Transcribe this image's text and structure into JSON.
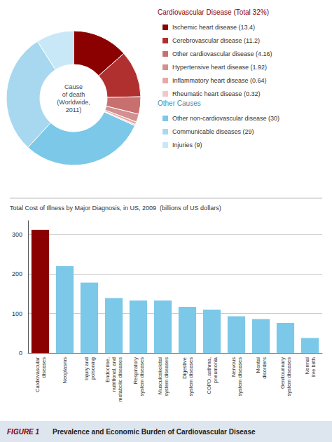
{
  "chart_data": [
    {
      "type": "pie",
      "title": "FIGURE 1",
      "subtitle": "Prevalence and Economic Burden of Cardiovascular Disease",
      "annotations": [
        "Cause\nof death\n(Worldwide,\n2011)"
      ],
      "legend": "right",
      "groups": [
        {
          "title": "Cardiovascular Disease (Total 32%)",
          "color": "#8B0000",
          "categories": [
            "Ischemic heart disease (13.4)",
            "Cerebrovascular disease (11.2)",
            "Other cardiovascular disease (4.16)",
            "Hypertensive heart disease (1.92)",
            "Inflammatory heart disease (0.64)",
            "Rheumatic heart disease (0.32)"
          ],
          "values": [
            13.4,
            11.2,
            4.16,
            1.92,
            0.64,
            0.32
          ],
          "colors": [
            "#8B0000",
            "#B03030",
            "#C87070",
            "#D49090",
            "#E8A8A8",
            "#F0C8C8"
          ]
        },
        {
          "title": "Other Causes",
          "color": "#4A8FAA",
          "categories": [
            "Other non-cardiovascular disease (30)",
            "Communicable diseases (29)",
            "Injuries (9)"
          ],
          "values": [
            30,
            29,
            9
          ],
          "colors": [
            "#7BC8E8",
            "#A8D8F0",
            "#C8E8F8"
          ]
        }
      ]
    },
    {
      "type": "bar",
      "title": "Total Cost of Illness by Major Diagnosis, in US, 2009  (billions of US dollars)",
      "categories": [
        "Cardiovascular\ndiseases",
        "Neoplasms",
        "Injury and\npoisoning",
        "Endocrine,\nnutritional, and\nmetabolic diseases",
        "Respiratory\nsystem diseases",
        "Musculoskeletal\nsystem diseases",
        "Digestive\nsystem diseases",
        "COPD, asthma,\npneumonia",
        "Nervous\nsystem diseases",
        "Mental\ndisorders",
        "Genitourinary\nsystem diseases",
        "Normal\nlive birth"
      ],
      "values": [
        312,
        220,
        178,
        139,
        133,
        133,
        117,
        110,
        93,
        86,
        76,
        38
      ],
      "colors": [
        "#8B0000",
        "#7BC8E8",
        "#7BC8E8",
        "#7BC8E8",
        "#7BC8E8",
        "#7BC8E8",
        "#7BC8E8",
        "#7BC8E8",
        "#7BC8E8",
        "#7BC8E8",
        "#7BC8E8",
        "#7BC8E8"
      ],
      "ylim": [
        0,
        335
      ],
      "yticks": [
        0,
        100,
        200,
        300
      ],
      "grid": true
    }
  ]
}
